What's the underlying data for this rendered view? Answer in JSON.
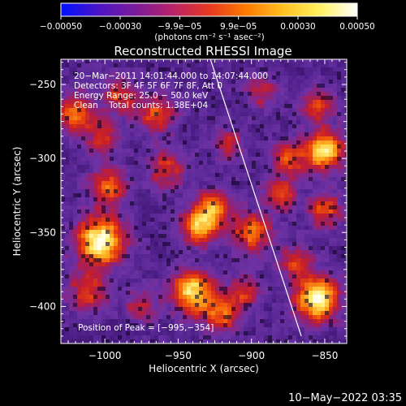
{
  "chart_data": {
    "type": "heatmap",
    "title": "Reconstructed RHESSI Image",
    "xlabel": "Heliocentric X (arcsec)",
    "ylabel": "Heliocentric Y (arcsec)",
    "xlim": [
      -1030,
      -835
    ],
    "ylim": [
      -425,
      -233
    ],
    "xticks": [
      {
        "v": -1000,
        "label": "−1000"
      },
      {
        "v": -950,
        "label": "−950"
      },
      {
        "v": -900,
        "label": "−900"
      },
      {
        "v": -850,
        "label": "−850"
      }
    ],
    "yticks": [
      {
        "v": -250,
        "label": "−250"
      },
      {
        "v": -300,
        "label": "−300"
      },
      {
        "v": -350,
        "label": "−350"
      },
      {
        "v": -400,
        "label": "−400"
      }
    ],
    "colorbar": {
      "range": [
        -0.0005,
        0.0005
      ],
      "ticks": [
        {
          "v": -0.0005,
          "label": "−0.00050"
        },
        {
          "v": -0.0003,
          "label": "−0.00030"
        },
        {
          "v": -9.9e-05,
          "label": "−9.9e−05"
        },
        {
          "v": 9.9e-05,
          "label": "9.9e−05"
        },
        {
          "v": 0.0003,
          "label": "0.00030"
        },
        {
          "v": 0.0005,
          "label": "0.00050"
        }
      ],
      "unit_label": "(photons cm⁻² s⁻¹ asec⁻²)",
      "colors": [
        "#0010ff",
        "#4a14c8",
        "#7a1c9a",
        "#b8226a",
        "#e83820",
        "#ff7a00",
        "#ffc020",
        "#fff060",
        "#ffffff"
      ]
    },
    "annotations": [
      "20−Mar−2011 14:01:44.000 to 14:07:44.000",
      "Detectors: 3F 4F 5F 6F 7F 8F, Att 0",
      "Energy Range: 25.0 − 50.0 keV",
      "Clean    Total counts: 1.38E+04"
    ],
    "peak_label": "Position of Peak = [−995,−354]",
    "limb_line": [
      [
        -928,
        -233
      ],
      [
        -866,
        -420
      ]
    ],
    "sources": [
      {
        "x": -1003,
        "y": -356,
        "amp": 1.0,
        "s": 11
      },
      {
        "x": -998,
        "y": -320,
        "amp": 0.55,
        "s": 9
      },
      {
        "x": -1012,
        "y": -390,
        "amp": 0.45,
        "s": 10
      },
      {
        "x": -1020,
        "y": -270,
        "amp": 0.55,
        "s": 10
      },
      {
        "x": -990,
        "y": -258,
        "amp": 0.45,
        "s": 8
      },
      {
        "x": -965,
        "y": -270,
        "amp": 0.5,
        "s": 9
      },
      {
        "x": -1000,
        "y": -287,
        "amp": 0.4,
        "s": 8
      },
      {
        "x": -958,
        "y": -307,
        "amp": 0.45,
        "s": 9
      },
      {
        "x": -935,
        "y": -345,
        "amp": 0.75,
        "s": 9
      },
      {
        "x": -925,
        "y": -332,
        "amp": 0.55,
        "s": 8
      },
      {
        "x": -940,
        "y": -390,
        "amp": 0.85,
        "s": 10
      },
      {
        "x": -920,
        "y": -405,
        "amp": 0.55,
        "s": 9
      },
      {
        "x": -900,
        "y": -350,
        "amp": 0.6,
        "s": 9
      },
      {
        "x": -880,
        "y": -325,
        "amp": 0.45,
        "s": 8
      },
      {
        "x": -875,
        "y": -300,
        "amp": 0.5,
        "s": 8
      },
      {
        "x": -850,
        "y": -295,
        "amp": 0.85,
        "s": 9
      },
      {
        "x": -855,
        "y": -265,
        "amp": 0.45,
        "s": 8
      },
      {
        "x": -850,
        "y": -335,
        "amp": 0.5,
        "s": 8
      },
      {
        "x": -855,
        "y": -395,
        "amp": 1.0,
        "s": 10
      },
      {
        "x": -870,
        "y": -370,
        "amp": 0.45,
        "s": 8
      },
      {
        "x": -905,
        "y": -390,
        "amp": 0.4,
        "s": 8
      },
      {
        "x": -893,
        "y": -255,
        "amp": 0.35,
        "s": 8
      },
      {
        "x": -975,
        "y": -400,
        "amp": 0.35,
        "s": 8
      },
      {
        "x": -915,
        "y": -290,
        "amp": 0.35,
        "s": 8
      }
    ]
  },
  "footer": {
    "date": "10−May−2022 03:35"
  }
}
